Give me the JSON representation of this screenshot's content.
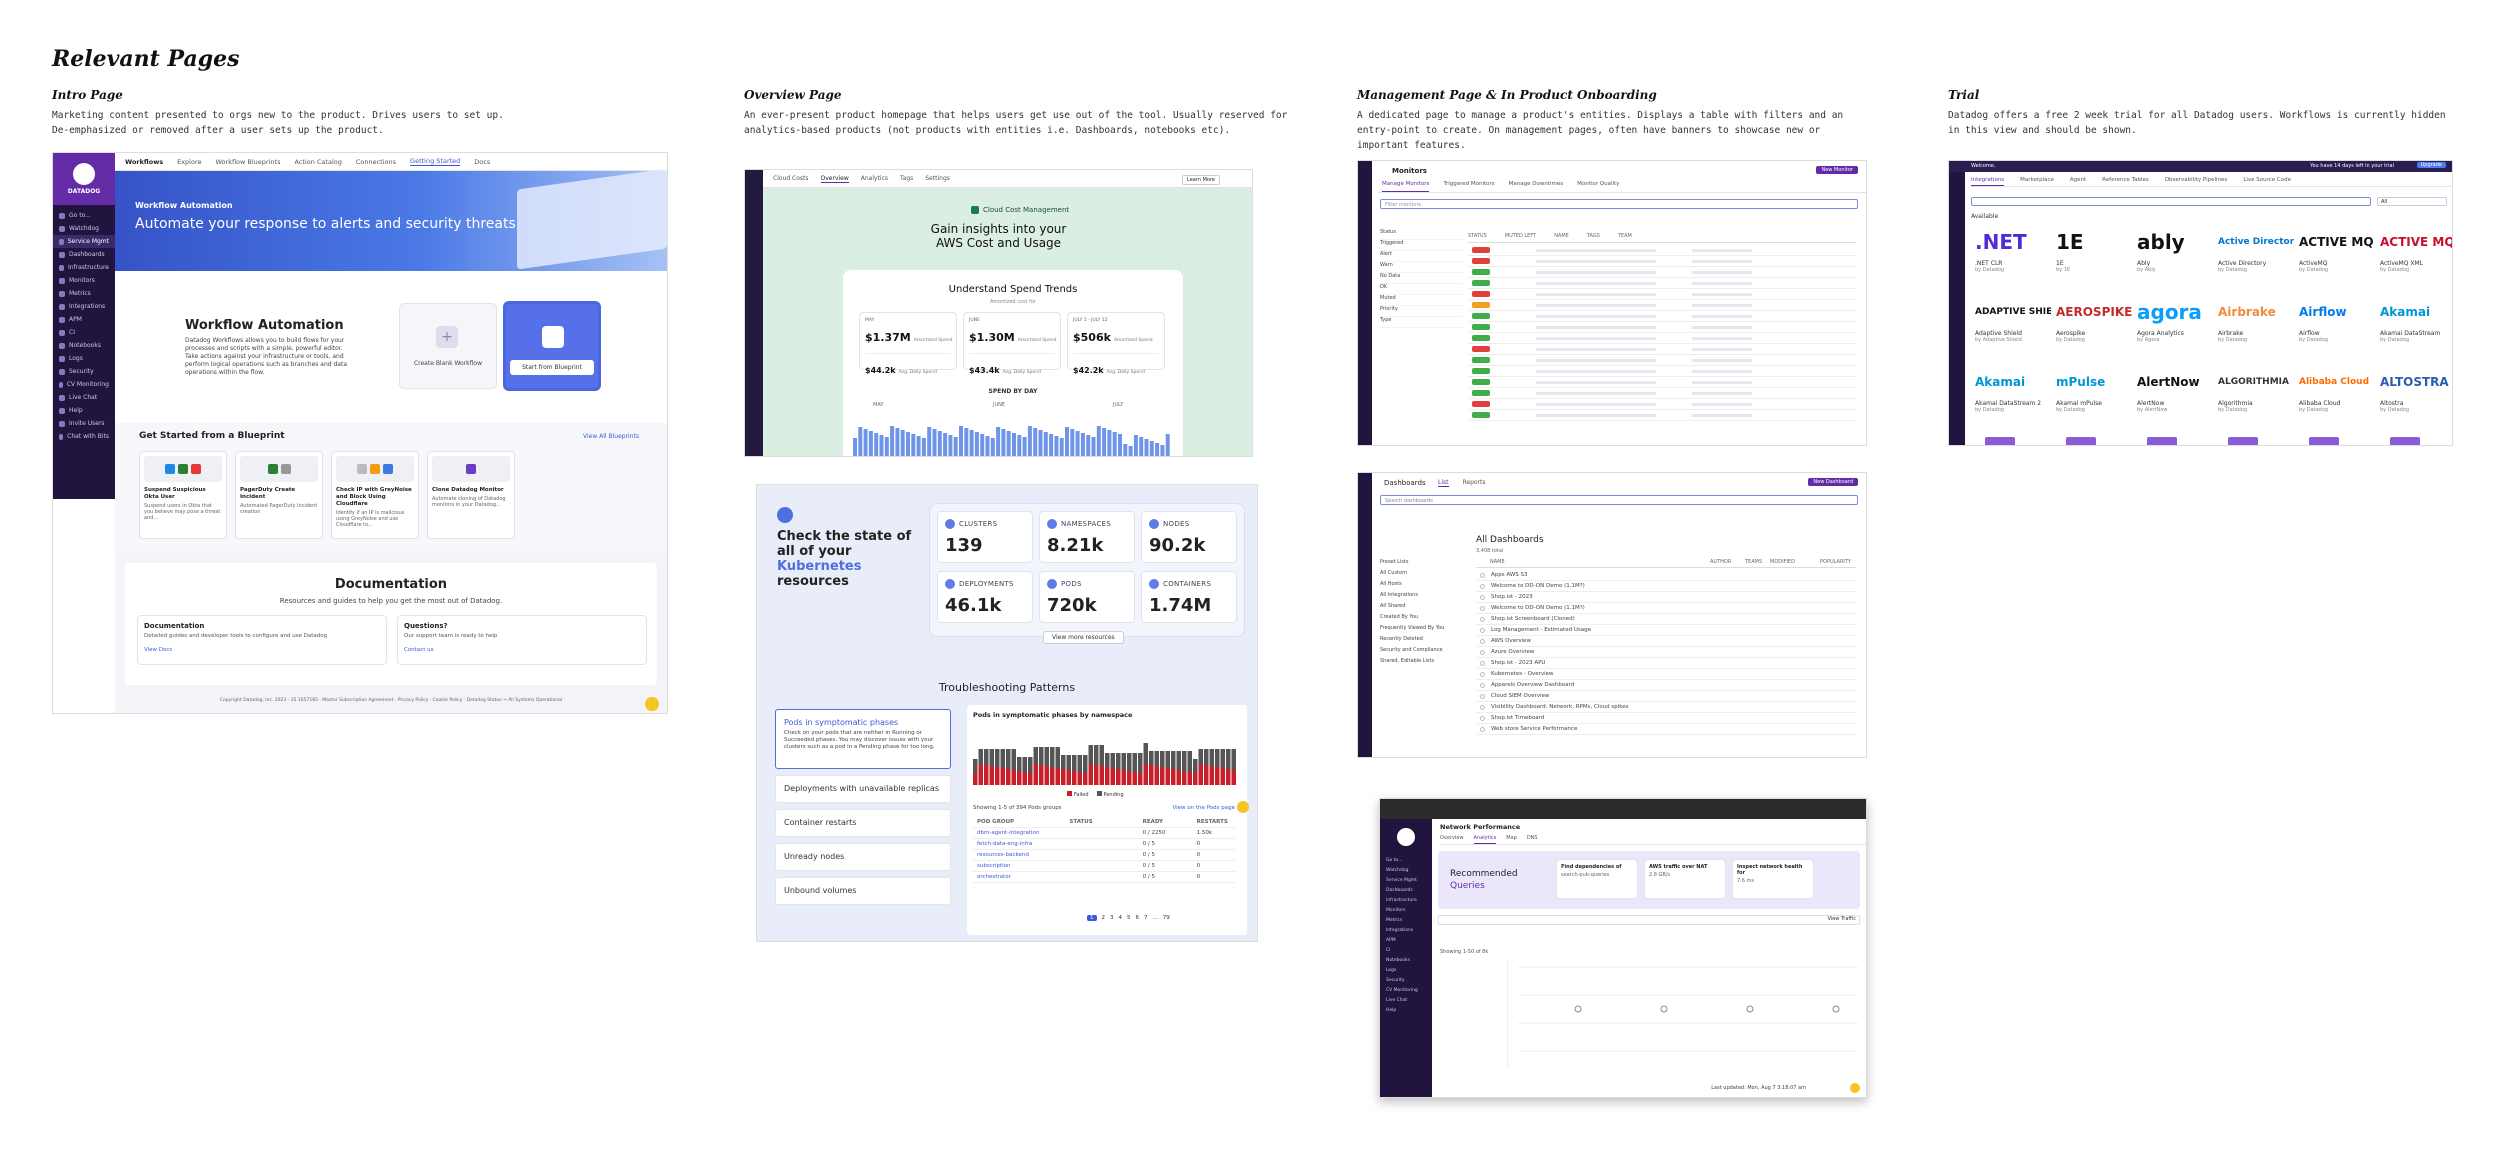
{
  "page_title": "Relevant Pages",
  "sections": [
    {
      "heading": "Intro Page",
      "desc": "Marketing content presented to orgs new to the product. Drives users to set up. De-emphasized or removed after a user sets up the product."
    },
    {
      "heading": "Overview Page",
      "desc": "An ever-present product homepage that helps users get use out of the tool. Usually reserved for analytics-based products (not products with entities i.e. Dashboards, notebooks etc)."
    },
    {
      "heading": "Management Page & In Product Onboarding",
      "desc": "A dedicated page to manage a product's entities. Displays a table with filters and an entry-point to create. On management pages, often have banners to showcase new or important features."
    },
    {
      "heading": "Trial",
      "desc": "Datadog offers a free 2 week trial for all Datadog users. Workflows is currently hidden in this view and should be shown."
    }
  ],
  "colors": {
    "datadog_purple": "#632ca6",
    "sidebar": "#211540",
    "hero_blue": "#3d6bd6",
    "accent": "#5e7ce6"
  },
  "intro": {
    "brand": "DATADOG",
    "tabs": [
      "Workflows",
      "Explore",
      "Workflow Blueprints",
      "Action Catalog",
      "Connections",
      "Getting Started",
      "Docs"
    ],
    "sidebar": [
      "Go to...",
      "Watchdog",
      "Service Mgmt",
      "Dashboards",
      "Infrastructure",
      "Monitors",
      "Metrics",
      "Integrations",
      "APM",
      "CI",
      "Notebooks",
      "Logs",
      "Security",
      "CV Monitoring",
      "Live Chat",
      "Help",
      "Invite Users",
      "Chat with Bits"
    ],
    "hero_kicker": "Workflow Automation",
    "hero_title": "Automate your response to alerts and security threats",
    "wa_title": "Workflow Automation",
    "wa_desc": "Datadog Workflows allows you to build flows for your processes and scripts with a simple, powerful editor. Take actions against your infrastructure or tools, and perform logical operations such as branches and data operations within the flow.",
    "create_blank": "Create Blank Workflow",
    "start_blueprint": "Start from Blueprint",
    "blueprints_title": "Get Started from a Blueprint",
    "view_all": "View All Blueprints",
    "blueprints": [
      {
        "title": "Suspend Suspicious Okta User",
        "desc": "Suspend users in Okta that you believe may pose a threat and..."
      },
      {
        "title": "PagerDuty Create Incident",
        "desc": "Automated PagerDuty Incident creation"
      },
      {
        "title": "Check IP with GreyNoise and Block Using Cloudflare",
        "desc": "Identify if an IP is malicious using GreyNoise and use Cloudflare to..."
      },
      {
        "title": "Clone Datadog Monitor",
        "desc": "Automate cloning of Datadog monitors in your Datadog..."
      }
    ],
    "docs_title": "Documentation",
    "docs_sub": "Resources and guides to help you get the most out of Datadog.",
    "doc_card_1_title": "Documentation",
    "doc_card_1_desc": "Detailed guides and developer tools to configure and use Datadog",
    "doc_card_1_link": "View Docs",
    "doc_card_2_title": "Questions?",
    "doc_card_2_desc": "Our support team is ready to help",
    "doc_card_2_link": "Contact us",
    "footer": "Copyright Datadog, Inc. 2023 - 35.1657185 · Master Subscription Agreement · Privacy Policy · Cookie Policy · Datadog Status → All Systems Operational"
  },
  "overview": {
    "tabs": [
      "Cloud Costs",
      "Overview",
      "Analytics",
      "Tags",
      "Settings"
    ],
    "learn_more": "Learn More",
    "cloud_cost_label": "Cloud Cost Management",
    "gain_title_1": "Gain insights into your",
    "gain_title_2": "AWS Cost and Usage",
    "spend_title": "Understand Spend Trends",
    "spend_sub": "Amortized cost for",
    "stats": [
      {
        "period": "MAY",
        "value": "$1.37M",
        "sub": "Amortized Spend",
        "daily": "$44.2k",
        "daily_sub": "Avg. Daily Spend"
      },
      {
        "period": "JUNE",
        "value": "$1.30M",
        "sub": "Amortized Spend",
        "daily": "$43.4k",
        "daily_sub": "Avg. Daily Spend"
      },
      {
        "period": "JULY 1 - JULY 12",
        "value": "$506k",
        "sub": "Amortized Spend",
        "daily": "$42.2k",
        "daily_sub": "Avg. Daily Spend"
      }
    ],
    "spend_by_day": "SPEND BY DAY",
    "chart_months": [
      "MAY",
      "JUNE",
      "JULY"
    ],
    "kube_title_1": "Check the state of all",
    "kube_title_2": "of your",
    "kube_title_highlight": "Kubernetes",
    "kube_title_3": "resources",
    "kube_cards": [
      {
        "label": "CLUSTERS",
        "value": "139"
      },
      {
        "label": "NAMESPACES",
        "value": "8.21k"
      },
      {
        "label": "NODES",
        "value": "90.2k"
      },
      {
        "label": "DEPLOYMENTS",
        "value": "46.1k"
      },
      {
        "label": "PODS",
        "value": "720k"
      },
      {
        "label": "CONTAINERS",
        "value": "1.74M"
      }
    ],
    "view_more": "View more resources",
    "ts_title": "Troubleshooting Patterns",
    "ts_items": [
      "Pods in symptomatic phases",
      "Deployments with unavailable replicas",
      "Container restarts",
      "Unready nodes",
      "Unbound volumes"
    ],
    "ts_active_desc": "Check on your pods that are neither in Running or Succeeded phases. You may discover issues with your clusters such as a pod in a Pending phase for too long.",
    "ts_chart_title": "Pods in symptomatic phases by namespace",
    "ts_legend": [
      "Failed",
      "Pending"
    ],
    "ts_showing": "Showing 1-5 of 394 Pods groups",
    "ts_view_more": "View on the Pods page",
    "ts_cols": [
      "POD GROUP",
      "STATUS",
      "READY",
      "RESTARTS"
    ],
    "ts_rows": [
      {
        "name": "dbm-agent-integration",
        "ready": "0 / 2250",
        "restarts": "1.50k"
      },
      {
        "name": "fetch-data-eng-infra",
        "ready": "0 / 5",
        "restarts": "0"
      },
      {
        "name": "resources-backend",
        "ready": "0 / 5",
        "restarts": "0"
      },
      {
        "name": "subscription",
        "ready": "0 / 5",
        "restarts": "0"
      },
      {
        "name": "orchestrator",
        "ready": "0 / 5",
        "restarts": "0"
      }
    ],
    "pagination": [
      "1",
      "2",
      "3",
      "4",
      "5",
      "6",
      "7",
      "...",
      "79"
    ]
  },
  "management": {
    "monitors_title": "Monitors",
    "new_monitor": "New Monitor",
    "monitor_tabs": [
      "Manage Monitors",
      "Triggered Monitors",
      "Manage Downtimes",
      "Monitor Quality"
    ],
    "filter_placeholder": "Filter monitors",
    "monitor_facets": [
      "Status",
      "Triggered",
      "Alert",
      "Warn",
      "No Data",
      "OK",
      "Muted",
      "Priority",
      "Type"
    ],
    "monitor_cols": [
      "STATUS",
      "MUTED LEFT",
      "NAME",
      "TAGS",
      "TEAM"
    ],
    "dashboards_title": "Dashboards",
    "new_dashboard": "New Dashboard",
    "dash_tabs": [
      "List",
      "Reports"
    ],
    "search_placeholder": "Search dashboards",
    "all_dashboards": "All Dashboards",
    "dash_count": "3,408 total",
    "dash_facets": [
      "Preset Lists",
      "All Custom",
      "All Hosts",
      "All Integrations",
      "All Shared",
      "Created By You",
      "Frequently Viewed By You",
      "Recently Deleted",
      "Security and Compliance",
      "Shared, Editable Lists"
    ],
    "dash_cols": [
      "NAME",
      "AUTHOR",
      "TEAMS",
      "MODIFIED",
      "POPULARITY"
    ],
    "dash_rows": [
      "Apps AWS S3",
      "Welcome to DD-ON Demo (1.1M?)",
      "Shop.ist - 2023",
      "Welcome to DD-ON Demo (1.1M?)",
      "Shop.ist Screenboard (Cloned)",
      "Log Management - Estimated Usage",
      "AWS Overview",
      "Azure Overview",
      "Shop.ist - 2023 APU",
      "Kubernetes - Overview",
      "Apparels Overview Dashboard",
      "Cloud SIEM Overview",
      "Visibility Dashboard: Network, RPMs, Cloud spikes",
      "Shop.ist Timeboard",
      "Web store Service Performance"
    ],
    "np_title": "Network Performance",
    "np_tabs": [
      "Overview",
      "Analytics",
      "Map",
      "DNS"
    ],
    "rec_title_1": "Recommended",
    "rec_title_2": "Queries",
    "rec_cards": [
      {
        "title": "Find dependencies of",
        "sub": "search-pub-queries"
      },
      {
        "title": "AWS traffic over NAT",
        "sub": "2.8 GB/s"
      },
      {
        "title": "Inspect network health for",
        "sub": "7.6 ms"
      }
    ],
    "np_filter": "View Traffic",
    "np_showing": "Showing 1-50 of 8k",
    "last_updated": "Last updated: Mon, Aug 7 3:18:07 am"
  },
  "trial": {
    "welcome": "Welcome,",
    "notice": "You have 14 days left in your trial",
    "upgrade": "Upgrade",
    "tabs": [
      "Integrations",
      "Marketplace",
      "Agent",
      "Reference Tables",
      "Observability Pipelines",
      "Live Source Code"
    ],
    "available": "Available",
    "search_filter": "All",
    "logos": [
      {
        "mark": ".NET",
        "name": ".NET CLR",
        "by": "by Datadog",
        "color": "#512bd4"
      },
      {
        "mark": "1E",
        "name": "1E",
        "by": "by 1E",
        "color": "#111111"
      },
      {
        "mark": "ably",
        "name": "Ably",
        "by": "by Ably",
        "color": "#111111"
      },
      {
        "mark": "Active Directory",
        "name": "Active Directory",
        "by": "by Datadog",
        "color": "#0078d4"
      },
      {
        "mark": "ACTIVE MQ",
        "name": "ActiveMQ",
        "by": "by Datadog",
        "color": "#111111"
      },
      {
        "mark": "ACTIVE MQ",
        "name": "ActiveMQ XML",
        "by": "by Datadog",
        "color": "#c8102e"
      },
      {
        "mark": "ADAPTIVE SHIELD",
        "name": "Adaptive Shield",
        "by": "by Adaptive Shield",
        "color": "#111111"
      },
      {
        "mark": "AEROSPIKE",
        "name": "Aerospike",
        "by": "by Datadog",
        "color": "#c22b2b"
      },
      {
        "mark": "agora",
        "name": "Agora Analytics",
        "by": "by Agora",
        "color": "#099dfd"
      },
      {
        "mark": "Airbrake",
        "name": "Airbrake",
        "by": "by Datadog",
        "color": "#f28b3b"
      },
      {
        "mark": "Airflow",
        "name": "Airflow",
        "by": "by Datadog",
        "color": "#017cee"
      },
      {
        "mark": "Akamai",
        "name": "Akamai DataStream",
        "by": "by Datadog",
        "color": "#0096d6"
      },
      {
        "mark": "Akamai",
        "name": "Akamai DataStream 2",
        "by": "by Datadog",
        "color": "#0096d6"
      },
      {
        "mark": "mPulse",
        "name": "Akamai mPulse",
        "by": "by Datadog",
        "color": "#0096d6"
      },
      {
        "mark": "AlertNow",
        "name": "AlertNow",
        "by": "by AlertNow",
        "color": "#111111"
      },
      {
        "mark": "ALGORITHMIA",
        "name": "Algorithmia",
        "by": "by Datadog",
        "color": "#333333"
      },
      {
        "mark": "Alibaba Cloud",
        "name": "Alibaba Cloud",
        "by": "by Datadog",
        "color": "#ff6a00"
      },
      {
        "mark": "ALTOSTRA",
        "name": "Altostra",
        "by": "by Datadog",
        "color": "#2a5db0"
      }
    ]
  }
}
